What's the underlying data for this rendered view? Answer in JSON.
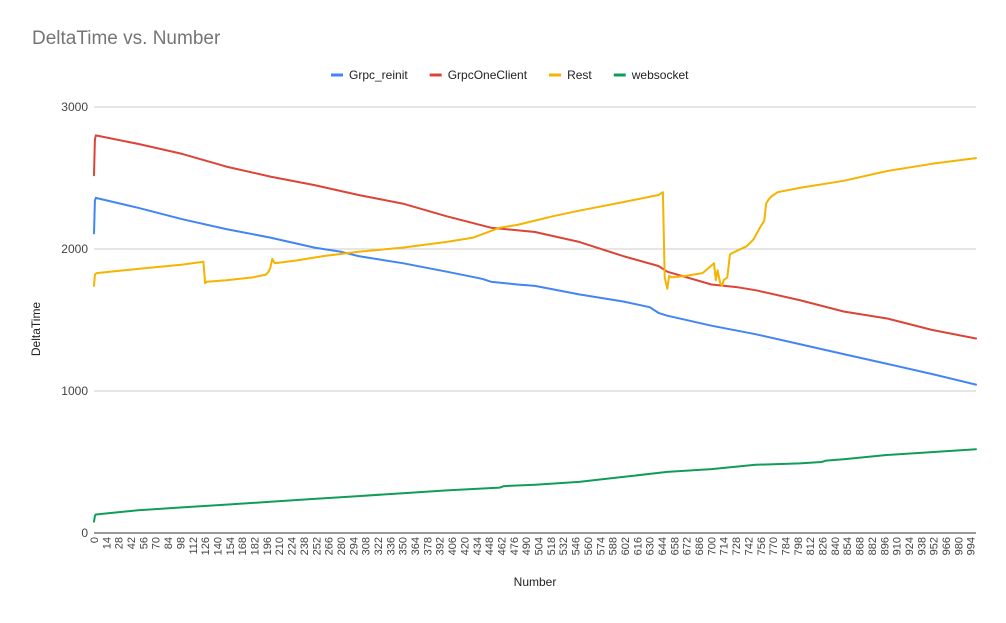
{
  "chart_data": {
    "type": "line",
    "title": "DeltaTime vs. Number",
    "xlabel": "Number",
    "ylabel": "DeltaTime",
    "xlim": [
      0,
      1000
    ],
    "ylim": [
      0,
      3000
    ],
    "y_ticks": [
      0,
      1000,
      2000,
      3000
    ],
    "x_tick_labels": [
      "0",
      "14",
      "28",
      "42",
      "56",
      "70",
      "84",
      "98",
      "112",
      "126",
      "140",
      "154",
      "168",
      "182",
      "196",
      "210",
      "224",
      "238",
      "252",
      "266",
      "280",
      "294",
      "308",
      "322",
      "336",
      "350",
      "364",
      "378",
      "392",
      "406",
      "420",
      "434",
      "448",
      "462",
      "476",
      "490",
      "504",
      "518",
      "532",
      "546",
      "560",
      "574",
      "588",
      "602",
      "616",
      "630",
      "644",
      "658",
      "672",
      "686",
      "700",
      "714",
      "728",
      "742",
      "756",
      "770",
      "784",
      "798",
      "812",
      "826",
      "840",
      "854",
      "868",
      "882",
      "896",
      "910",
      "924",
      "938",
      "952",
      "966",
      "980",
      "994"
    ],
    "grid": true,
    "legend_position": "top",
    "series": [
      {
        "name": "Grpc_reinit",
        "color": "#4285f4",
        "x": [
          0,
          1,
          2,
          50,
          100,
          150,
          200,
          250,
          280,
          300,
          350,
          400,
          440,
          450,
          480,
          500,
          550,
          600,
          630,
          640,
          650,
          700,
          750,
          800,
          850,
          900,
          950,
          1000
        ],
        "y": [
          2110,
          2340,
          2360,
          2290,
          2210,
          2140,
          2080,
          2010,
          1980,
          1950,
          1900,
          1840,
          1790,
          1770,
          1750,
          1740,
          1680,
          1630,
          1590,
          1550,
          1530,
          1460,
          1400,
          1330,
          1260,
          1190,
          1120,
          1045
        ]
      },
      {
        "name": "GrpcOneClient",
        "color": "#db4437",
        "x": [
          0,
          1,
          2,
          50,
          100,
          150,
          200,
          250,
          300,
          350,
          400,
          450,
          500,
          550,
          600,
          640,
          650,
          700,
          730,
          750,
          800,
          850,
          900,
          950,
          1000
        ],
        "y": [
          2520,
          2770,
          2800,
          2740,
          2670,
          2580,
          2510,
          2450,
          2380,
          2320,
          2230,
          2150,
          2120,
          2050,
          1950,
          1880,
          1840,
          1750,
          1730,
          1710,
          1640,
          1560,
          1510,
          1430,
          1370
        ]
      },
      {
        "name": "Rest",
        "color": "#f4b400",
        "x": [
          0,
          1,
          3,
          50,
          100,
          124,
          126,
          128,
          150,
          180,
          195,
          198,
          200,
          202,
          205,
          230,
          260,
          300,
          350,
          400,
          430,
          460,
          480,
          500,
          520,
          550,
          600,
          640,
          645,
          647,
          650,
          652,
          655,
          670,
          690,
          703,
          705,
          707,
          710,
          712,
          714,
          716,
          718,
          721,
          723,
          740,
          745,
          748,
          755,
          760,
          762,
          765,
          768,
          775,
          800,
          850,
          900,
          950,
          1000
        ],
        "y": [
          1740,
          1820,
          1830,
          1860,
          1890,
          1910,
          1760,
          1770,
          1780,
          1800,
          1820,
          1840,
          1870,
          1930,
          1900,
          1920,
          1950,
          1980,
          2010,
          2050,
          2080,
          2150,
          2170,
          2200,
          2230,
          2270,
          2330,
          2380,
          2400,
          1800,
          1720,
          1810,
          1800,
          1810,
          1830,
          1900,
          1780,
          1850,
          1760,
          1740,
          1780,
          1790,
          1800,
          1960,
          1970,
          2020,
          2050,
          2070,
          2150,
          2200,
          2320,
          2350,
          2370,
          2400,
          2430,
          2480,
          2550,
          2600,
          2640
        ]
      },
      {
        "name": "websocket",
        "color": "#0f9d58",
        "x": [
          0,
          1,
          2,
          50,
          100,
          150,
          200,
          250,
          300,
          350,
          400,
          460,
          465,
          500,
          550,
          600,
          650,
          700,
          750,
          800,
          825,
          830,
          850,
          900,
          950,
          1000
        ],
        "y": [
          80,
          120,
          130,
          160,
          180,
          200,
          220,
          240,
          260,
          280,
          300,
          320,
          330,
          340,
          360,
          395,
          430,
          450,
          480,
          490,
          500,
          510,
          520,
          550,
          570,
          590
        ]
      }
    ]
  }
}
